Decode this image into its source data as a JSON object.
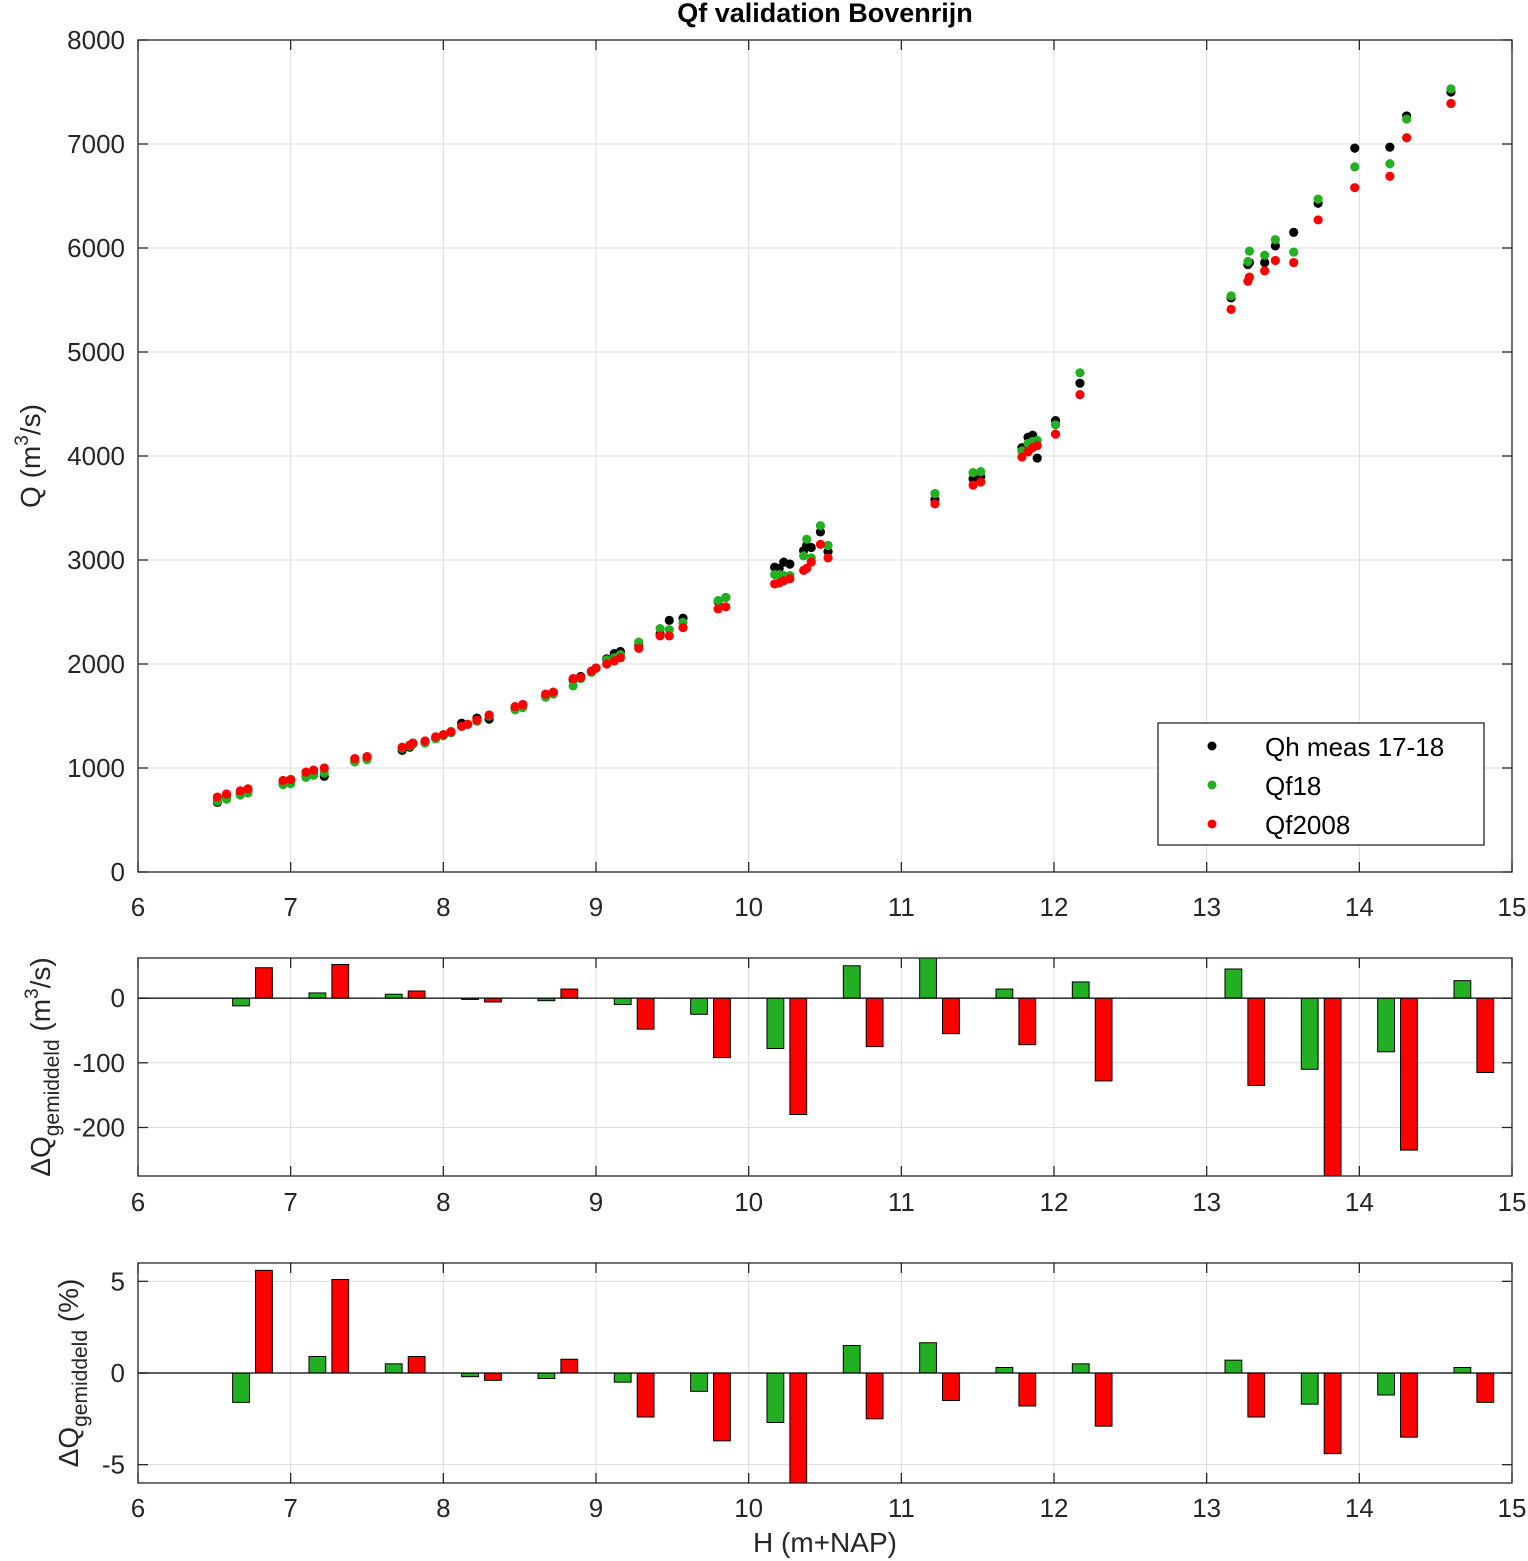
{
  "chart_data": [
    {
      "type": "scatter",
      "title": "Qf validation Bovenrijn",
      "xlabel": "",
      "ylabel": "Q (m3/s)",
      "ylabel_parts": {
        "pre": "Q (m",
        "sup": "3",
        "post": "/s)"
      },
      "xlim": [
        6,
        15
      ],
      "ylim": [
        0,
        8000
      ],
      "xticks": [
        6,
        7,
        8,
        9,
        10,
        11,
        12,
        13,
        14,
        15
      ],
      "yticks": [
        0,
        1000,
        2000,
        3000,
        4000,
        5000,
        6000,
        7000,
        8000
      ],
      "grid": true,
      "legend_position": "bottom-right",
      "series": [
        {
          "name": "Qh meas 17-18",
          "color": "#000000",
          "points": [
            [
              6.52,
              670
            ],
            [
              6.58,
              710
            ],
            [
              6.67,
              750
            ],
            [
              6.72,
              780
            ],
            [
              6.95,
              850
            ],
            [
              7.0,
              870
            ],
            [
              7.1,
              920
            ],
            [
              7.15,
              940
            ],
            [
              7.22,
              920
            ],
            [
              7.42,
              1060
            ],
            [
              7.5,
              1090
            ],
            [
              7.73,
              1170
            ],
            [
              7.78,
              1200
            ],
            [
              7.8,
              1230
            ],
            [
              7.88,
              1250
            ],
            [
              7.95,
              1290
            ],
            [
              8.0,
              1320
            ],
            [
              8.05,
              1340
            ],
            [
              8.12,
              1430
            ],
            [
              8.16,
              1420
            ],
            [
              8.22,
              1480
            ],
            [
              8.3,
              1470
            ],
            [
              8.47,
              1570
            ],
            [
              8.52,
              1610
            ],
            [
              8.67,
              1690
            ],
            [
              8.72,
              1720
            ],
            [
              8.85,
              1850
            ],
            [
              8.9,
              1880
            ],
            [
              8.97,
              1930
            ],
            [
              9.0,
              1960
            ],
            [
              9.07,
              2050
            ],
            [
              9.12,
              2100
            ],
            [
              9.16,
              2120
            ],
            [
              9.28,
              2180
            ],
            [
              9.42,
              2290
            ],
            [
              9.48,
              2420
            ],
            [
              9.57,
              2440
            ],
            [
              9.8,
              2600
            ],
            [
              9.85,
              2640
            ],
            [
              10.17,
              2930
            ],
            [
              10.2,
              2920
            ],
            [
              10.23,
              2980
            ],
            [
              10.27,
              2960
            ],
            [
              10.36,
              3090
            ],
            [
              10.38,
              3140
            ],
            [
              10.41,
              3120
            ],
            [
              10.47,
              3270
            ],
            [
              10.52,
              3080
            ],
            [
              11.22,
              3580
            ],
            [
              11.47,
              3780
            ],
            [
              11.52,
              3800
            ],
            [
              11.79,
              4080
            ],
            [
              11.83,
              4180
            ],
            [
              11.86,
              4200
            ],
            [
              11.89,
              3980
            ],
            [
              12.01,
              4340
            ],
            [
              12.17,
              4700
            ],
            [
              13.16,
              5520
            ],
            [
              13.27,
              5840
            ],
            [
              13.28,
              5860
            ],
            [
              13.38,
              5860
            ],
            [
              13.45,
              6020
            ],
            [
              13.57,
              6150
            ],
            [
              13.73,
              6430
            ],
            [
              13.97,
              6960
            ],
            [
              14.2,
              6970
            ],
            [
              14.31,
              7270
            ],
            [
              14.6,
              7500
            ]
          ]
        },
        {
          "name": "Qf18",
          "color": "#22b022",
          "points": [
            [
              6.52,
              680
            ],
            [
              6.58,
              700
            ],
            [
              6.67,
              740
            ],
            [
              6.72,
              760
            ],
            [
              6.95,
              840
            ],
            [
              7.0,
              850
            ],
            [
              7.1,
              910
            ],
            [
              7.15,
              930
            ],
            [
              7.22,
              950
            ],
            [
              7.42,
              1060
            ],
            [
              7.5,
              1080
            ],
            [
              7.73,
              1190
            ],
            [
              7.78,
              1210
            ],
            [
              7.8,
              1230
            ],
            [
              7.88,
              1240
            ],
            [
              7.95,
              1280
            ],
            [
              8.0,
              1310
            ],
            [
              8.05,
              1340
            ],
            [
              8.12,
              1400
            ],
            [
              8.16,
              1420
            ],
            [
              8.22,
              1450
            ],
            [
              8.3,
              1500
            ],
            [
              8.47,
              1560
            ],
            [
              8.52,
              1580
            ],
            [
              8.67,
              1680
            ],
            [
              8.72,
              1710
            ],
            [
              8.85,
              1790
            ],
            [
              8.9,
              1860
            ],
            [
              8.97,
              1920
            ],
            [
              9.0,
              1960
            ],
            [
              9.07,
              2040
            ],
            [
              9.12,
              2060
            ],
            [
              9.16,
              2090
            ],
            [
              9.28,
              2210
            ],
            [
              9.42,
              2340
            ],
            [
              9.48,
              2330
            ],
            [
              9.57,
              2400
            ],
            [
              9.8,
              2610
            ],
            [
              9.85,
              2640
            ],
            [
              10.17,
              2860
            ],
            [
              10.2,
              2860
            ],
            [
              10.23,
              2850
            ],
            [
              10.27,
              2850
            ],
            [
              10.36,
              3040
            ],
            [
              10.38,
              3200
            ],
            [
              10.41,
              3020
            ],
            [
              10.47,
              3330
            ],
            [
              10.52,
              3140
            ],
            [
              11.22,
              3640
            ],
            [
              11.47,
              3840
            ],
            [
              11.52,
              3850
            ],
            [
              11.79,
              4050
            ],
            [
              11.83,
              4120
            ],
            [
              11.86,
              4140
            ],
            [
              11.89,
              4150
            ],
            [
              12.01,
              4300
            ],
            [
              12.17,
              4800
            ],
            [
              13.16,
              5540
            ],
            [
              13.27,
              5870
            ],
            [
              13.28,
              5970
            ],
            [
              13.38,
              5930
            ],
            [
              13.45,
              6080
            ],
            [
              13.57,
              5960
            ],
            [
              13.73,
              6470
            ],
            [
              13.97,
              6780
            ],
            [
              14.2,
              6810
            ],
            [
              14.31,
              7240
            ],
            [
              14.6,
              7530
            ]
          ]
        },
        {
          "name": "Qf2008",
          "color": "#ff0000",
          "points": [
            [
              6.52,
              720
            ],
            [
              6.58,
              750
            ],
            [
              6.67,
              780
            ],
            [
              6.72,
              800
            ],
            [
              6.95,
              880
            ],
            [
              7.0,
              890
            ],
            [
              7.1,
              960
            ],
            [
              7.15,
              980
            ],
            [
              7.22,
              1000
            ],
            [
              7.42,
              1090
            ],
            [
              7.5,
              1110
            ],
            [
              7.73,
              1200
            ],
            [
              7.78,
              1220
            ],
            [
              7.8,
              1240
            ],
            [
              7.88,
              1260
            ],
            [
              7.95,
              1300
            ],
            [
              8.0,
              1320
            ],
            [
              8.05,
              1350
            ],
            [
              8.12,
              1400
            ],
            [
              8.16,
              1420
            ],
            [
              8.22,
              1460
            ],
            [
              8.3,
              1510
            ],
            [
              8.47,
              1590
            ],
            [
              8.52,
              1610
            ],
            [
              8.67,
              1710
            ],
            [
              8.72,
              1730
            ],
            [
              8.85,
              1860
            ],
            [
              8.9,
              1870
            ],
            [
              8.97,
              1930
            ],
            [
              9.0,
              1960
            ],
            [
              9.07,
              2000
            ],
            [
              9.12,
              2030
            ],
            [
              9.16,
              2060
            ],
            [
              9.28,
              2150
            ],
            [
              9.42,
              2270
            ],
            [
              9.48,
              2270
            ],
            [
              9.57,
              2350
            ],
            [
              9.8,
              2530
            ],
            [
              9.85,
              2550
            ],
            [
              10.17,
              2770
            ],
            [
              10.2,
              2780
            ],
            [
              10.23,
              2800
            ],
            [
              10.27,
              2820
            ],
            [
              10.36,
              2900
            ],
            [
              10.38,
              2920
            ],
            [
              10.41,
              2980
            ],
            [
              10.47,
              3150
            ],
            [
              10.52,
              3020
            ],
            [
              11.22,
              3540
            ],
            [
              11.47,
              3720
            ],
            [
              11.52,
              3750
            ],
            [
              11.79,
              3990
            ],
            [
              11.83,
              4040
            ],
            [
              11.86,
              4080
            ],
            [
              11.89,
              4100
            ],
            [
              12.01,
              4210
            ],
            [
              12.17,
              4590
            ],
            [
              13.16,
              5410
            ],
            [
              13.27,
              5680
            ],
            [
              13.28,
              5720
            ],
            [
              13.38,
              5780
            ],
            [
              13.45,
              5880
            ],
            [
              13.57,
              5860
            ],
            [
              13.73,
              6270
            ],
            [
              13.97,
              6580
            ],
            [
              14.2,
              6690
            ],
            [
              14.31,
              7060
            ],
            [
              14.6,
              7390
            ]
          ]
        }
      ]
    },
    {
      "type": "bar",
      "xlabel": "",
      "ylabel": "ΔQgemiddeld (m3/s)",
      "ylabel_parts": {
        "pre": "ΔQ",
        "sub": "gemiddeld",
        "post": " (m",
        "sup": "3",
        "post2": "/s)"
      },
      "xlim": [
        6,
        15
      ],
      "ylim": [
        -275,
        62
      ],
      "xticks": [
        6,
        7,
        8,
        9,
        10,
        11,
        12,
        13,
        14,
        15
      ],
      "yticks": [
        -200,
        -100,
        0
      ],
      "grid": true,
      "x": [
        6.75,
        7.25,
        7.75,
        8.25,
        8.75,
        9.25,
        9.75,
        10.25,
        10.75,
        11.25,
        11.75,
        12.25,
        13.25,
        13.75,
        14.25,
        14.75
      ],
      "series": [
        {
          "name": "",
          "color": "#22b022",
          "values": [
            -12,
            8,
            6,
            -2,
            -4,
            -10,
            -25,
            -78,
            50,
            65,
            14,
            25,
            45,
            -110,
            -83,
            27
          ]
        },
        {
          "name": "",
          "color": "#ff0000",
          "values": [
            47,
            52,
            11,
            -6,
            14,
            -48,
            -92,
            -180,
            -75,
            -55,
            -72,
            -128,
            -135,
            -275,
            -235,
            -115
          ]
        }
      ]
    },
    {
      "type": "bar",
      "xlabel": "H (m+NAP)",
      "ylabel": "ΔQgemiddeld (%)",
      "ylabel_parts": {
        "pre": "ΔQ",
        "sub": "gemiddeld",
        "post": " (%)"
      },
      "xlim": [
        6,
        15
      ],
      "ylim": [
        -6,
        6
      ],
      "xticks": [
        6,
        7,
        8,
        9,
        10,
        11,
        12,
        13,
        14,
        15
      ],
      "yticks": [
        -5,
        0,
        5
      ],
      "grid": true,
      "x": [
        6.75,
        7.25,
        7.75,
        8.25,
        8.75,
        9.25,
        9.75,
        10.25,
        10.75,
        11.25,
        11.75,
        12.25,
        13.25,
        13.75,
        14.25,
        14.75
      ],
      "series": [
        {
          "name": "",
          "color": "#22b022",
          "values": [
            -1.6,
            0.9,
            0.5,
            -0.2,
            -0.3,
            -0.5,
            -1.0,
            -2.7,
            1.5,
            1.65,
            0.3,
            0.5,
            0.7,
            -1.7,
            -1.2,
            0.3
          ]
        },
        {
          "name": "",
          "color": "#ff0000",
          "values": [
            5.6,
            5.1,
            0.9,
            -0.4,
            0.75,
            -2.4,
            -3.7,
            -6.0,
            -2.5,
            -1.5,
            -1.8,
            -2.9,
            -2.4,
            -4.4,
            -3.5,
            -1.6
          ]
        }
      ]
    }
  ]
}
